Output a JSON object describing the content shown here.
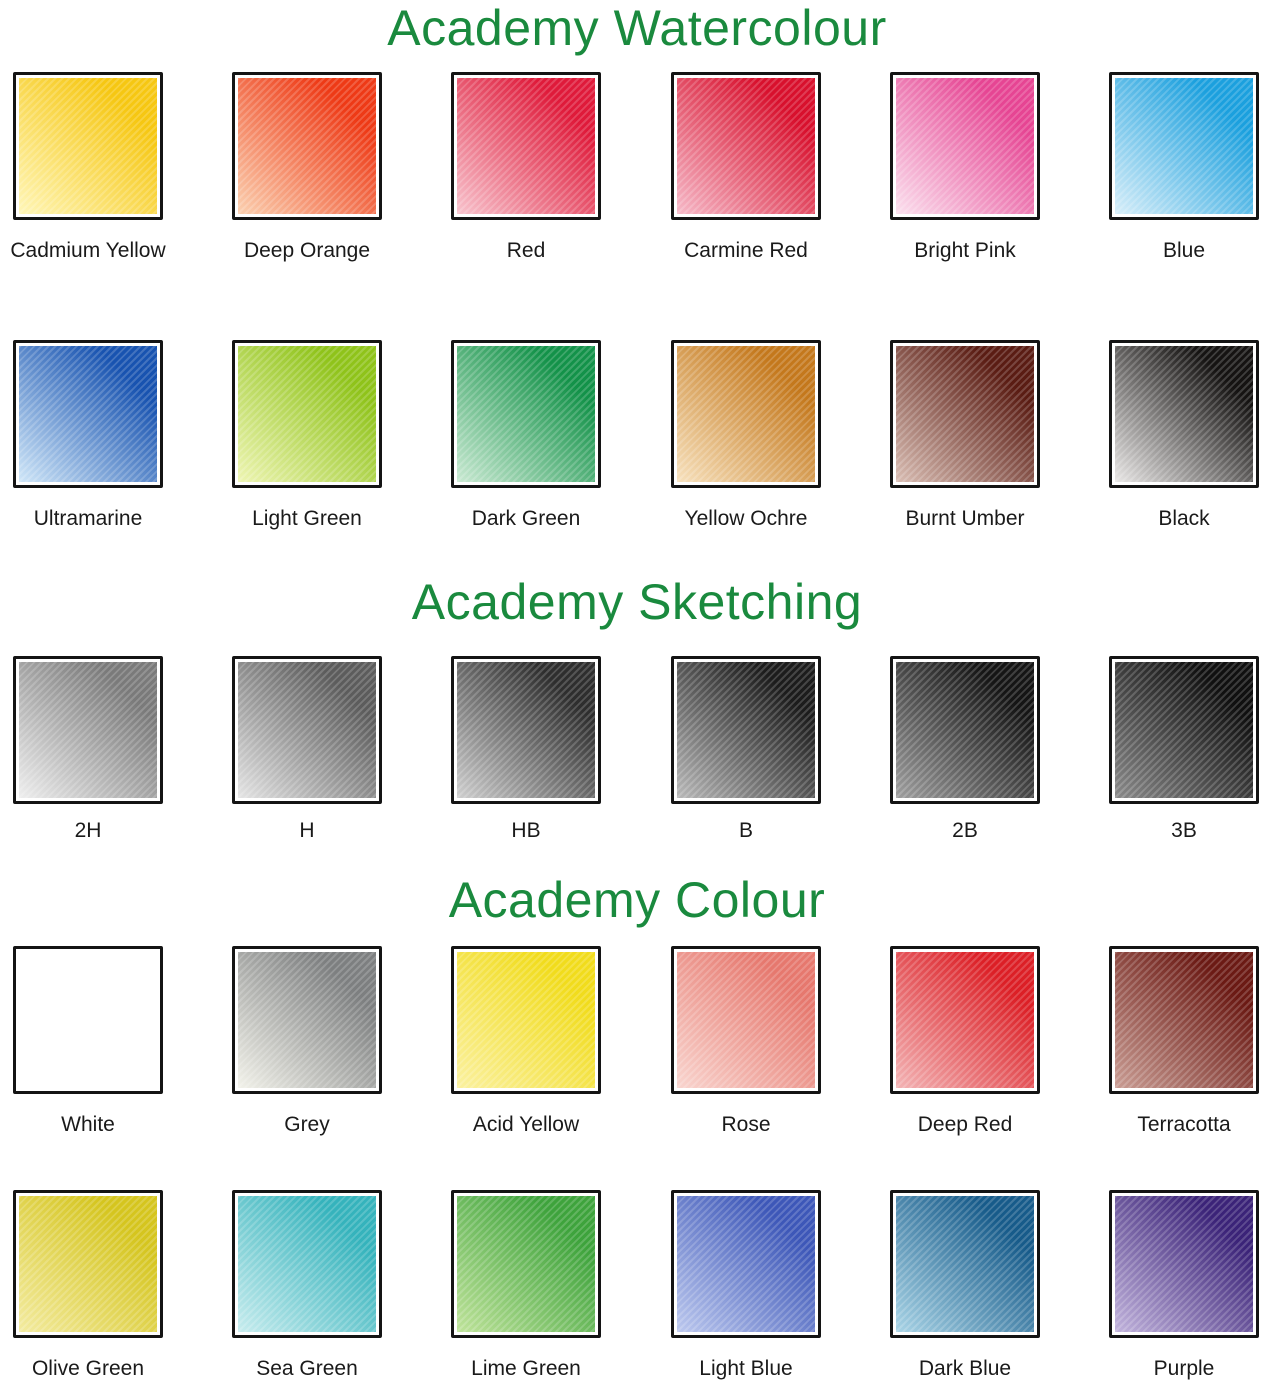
{
  "watercolour": {
    "title": "Academy Watercolour",
    "rows": [
      [
        {
          "label": "Cadmium Yellow",
          "color": "#f6c712",
          "light": "#fff6b8"
        },
        {
          "label": "Deep Orange",
          "color": "#ee3a16",
          "light": "#fbd0b0"
        },
        {
          "label": "Red",
          "color": "#df1a3a",
          "light": "#f8c3cd"
        },
        {
          "label": "Carmine Red",
          "color": "#d8102d",
          "light": "#f6b9c8"
        },
        {
          "label": "Bright Pink",
          "color": "#e64593",
          "light": "#fbe0ee"
        },
        {
          "label": "Blue",
          "color": "#1ba0de",
          "light": "#d7eef9"
        }
      ],
      [
        {
          "label": "Ultramarine",
          "color": "#1853b0",
          "light": "#cfe6f8"
        },
        {
          "label": "Light Green",
          "color": "#8fc31a",
          "light": "#eef5b3"
        },
        {
          "label": "Dark Green",
          "color": "#139249",
          "light": "#c9e9d2"
        },
        {
          "label": "Yellow Ochre",
          "color": "#c4781c",
          "light": "#f7e1bd"
        },
        {
          "label": "Burnt Umber",
          "color": "#5a1c13",
          "light": "#d9bdb3"
        },
        {
          "label": "Black",
          "color": "#151312",
          "light": "#e9e7e6"
        }
      ]
    ]
  },
  "sketching": {
    "title": "Academy Sketching",
    "items": [
      {
        "label": "2H",
        "color": "#7a7a7a",
        "light": "#eeeeee"
      },
      {
        "label": "H",
        "color": "#5c5c5c",
        "light": "#e4e4e4"
      },
      {
        "label": "HB",
        "color": "#2e2e2e",
        "light": "#cfcfcf"
      },
      {
        "label": "B",
        "color": "#1c1c1c",
        "light": "#b9b9b9"
      },
      {
        "label": "2B",
        "color": "#151515",
        "light": "#9f9f9f"
      },
      {
        "label": "3B",
        "color": "#101010",
        "light": "#8a8a8a"
      }
    ]
  },
  "colour": {
    "title": "Academy Colour",
    "rows": [
      [
        {
          "label": "White",
          "color": "#ffffff",
          "light": "#ffffff"
        },
        {
          "label": "Grey",
          "color": "#7d7f80",
          "light": "#f2f2ea"
        },
        {
          "label": "Acid Yellow",
          "color": "#f1dc1c",
          "light": "#fbf1a0"
        },
        {
          "label": "Rose",
          "color": "#e6786e",
          "light": "#f9d5cf"
        },
        {
          "label": "Deep Red",
          "color": "#dc1f26",
          "light": "#f3b4b5"
        },
        {
          "label": "Terracotta",
          "color": "#6b1a14",
          "light": "#c99c93"
        }
      ],
      [
        {
          "label": "Olive Green",
          "color": "#d5c51e",
          "light": "#f3eba0"
        },
        {
          "label": "Sea Green",
          "color": "#35b3bc",
          "light": "#c7ecee"
        },
        {
          "label": "Lime Green",
          "color": "#3ea33c",
          "light": "#bfe39a"
        },
        {
          "label": "Light Blue",
          "color": "#3d57b8",
          "light": "#bcc8ee"
        },
        {
          "label": "Dark Blue",
          "color": "#175b8a",
          "light": "#a9d4e6"
        },
        {
          "label": "Purple",
          "color": "#3b2378",
          "light": "#c1b3dc"
        }
      ]
    ]
  }
}
